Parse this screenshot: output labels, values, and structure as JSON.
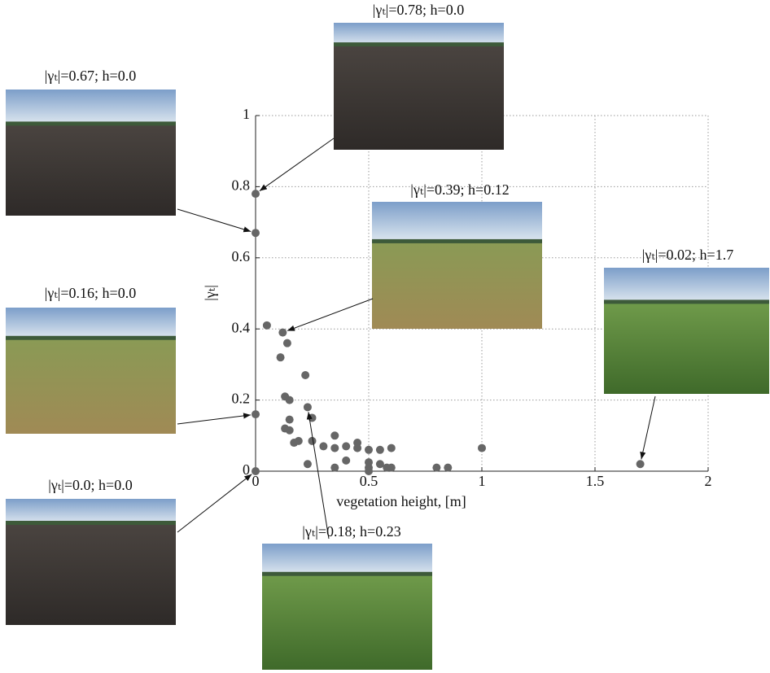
{
  "chart_data": {
    "type": "scatter",
    "xlabel": "vegetation height, [m]",
    "ylabel": "|γₜ|",
    "x": [
      0,
      0,
      0,
      0,
      0.05,
      0.12,
      0.14,
      0.11,
      0.22,
      0.13,
      0.15,
      0.23,
      0.25,
      0.15,
      0.13,
      0.15,
      0.19,
      0.17,
      0.25,
      0.3,
      0.35,
      0.35,
      0.4,
      0.45,
      0.45,
      0.5,
      0.55,
      0.6,
      0.4,
      0.5,
      0.55,
      0.23,
      0.35,
      0.5,
      0.5,
      0.58,
      0.6,
      0.8,
      0.85,
      1.0,
      1.7
    ],
    "y": [
      0,
      0.16,
      0.67,
      0.78,
      0.41,
      0.39,
      0.36,
      0.32,
      0.27,
      0.21,
      0.2,
      0.18,
      0.15,
      0.145,
      0.12,
      0.115,
      0.085,
      0.08,
      0.085,
      0.07,
      0.1,
      0.065,
      0.07,
      0.08,
      0.065,
      0.06,
      0.06,
      0.065,
      0.03,
      0.025,
      0.02,
      0.02,
      0.01,
      0.01,
      0,
      0.01,
      0.01,
      0.01,
      0.01,
      0.065,
      0.02
    ],
    "color": "#666666",
    "xlim": [
      0,
      2
    ],
    "ylim": [
      0,
      1
    ],
    "xticks": [
      0,
      0.5,
      1,
      1.5,
      2
    ],
    "yticks": [
      0,
      0.2,
      0.4,
      0.6,
      0.8,
      1
    ],
    "grid": true,
    "annotations": [
      {
        "text": "|γₜ|=0.78; h=0.0"
      },
      {
        "text": "|γₜ|=0.67; h=0.0"
      },
      {
        "text": "|γₜ|=0.16; h=0.0"
      },
      {
        "text": "|γₜ|=0.0; h=0.0"
      },
      {
        "text": "|γₜ|=0.39; h=0.12"
      },
      {
        "text": "|γₜ|=0.02; h=1.7"
      },
      {
        "text": "|γₜ|=0.18; h=0.23"
      }
    ]
  }
}
